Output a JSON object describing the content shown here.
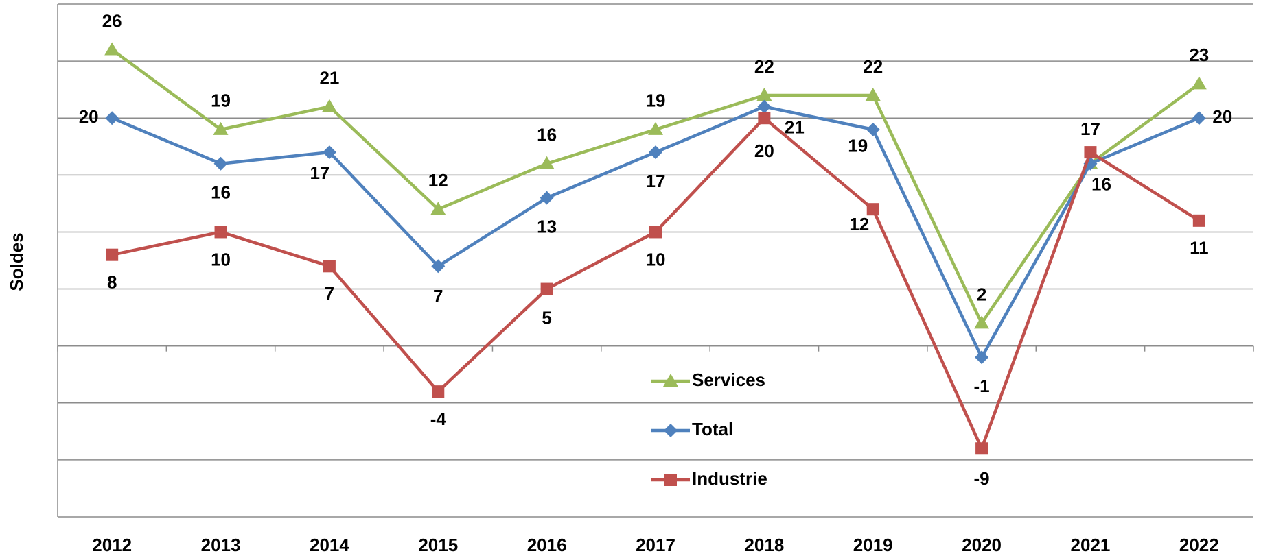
{
  "chart_data": {
    "type": "line",
    "y_label": "Soldes",
    "categories": [
      "2012",
      "2013",
      "2014",
      "2015",
      "2016",
      "2017",
      "2018",
      "2019",
      "2020",
      "2021",
      "2022"
    ],
    "series": [
      {
        "name": "Services",
        "color": "#9bbb59",
        "marker": "triangle",
        "values": [
          26,
          19,
          21,
          12,
          16,
          19,
          22,
          22,
          2,
          16,
          23
        ],
        "value_labels": [
          "26",
          "19",
          "21",
          "12",
          "16",
          "19",
          "22",
          "22",
          "2",
          null,
          "23"
        ]
      },
      {
        "name": "Total",
        "color": "#4f81bd",
        "marker": "diamond",
        "values": [
          20,
          16,
          17,
          7,
          13,
          17,
          21,
          19,
          -1,
          16,
          20
        ]
      },
      {
        "name": "Industrie",
        "color": "#c0504d",
        "marker": "square",
        "values": [
          8,
          10,
          7,
          -4,
          5,
          10,
          20,
          12,
          -9,
          17,
          11
        ]
      }
    ],
    "ylim": [
      -15,
      30
    ],
    "yticks": [
      -15,
      -10,
      -5,
      0,
      5,
      10,
      15,
      20,
      25,
      30
    ],
    "grid": true
  }
}
